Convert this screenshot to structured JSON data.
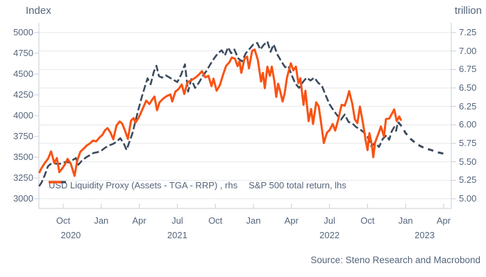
{
  "chart": {
    "left_axis_title": "Index",
    "right_axis_title": "trillion",
    "source": "Source: Steno Research and Macrobond",
    "legend": [
      {
        "label": "USD Liquidity Proxy (Assets - TGA - RRP) , rhs"
      },
      {
        "label": "S&P 500 total return, lhs"
      }
    ]
  },
  "chart_data": {
    "type": "line",
    "title": "",
    "grid": true,
    "legend_position": "bottom-inside",
    "colors": {
      "liquidity": "#3b4a5c",
      "sp500": "#f95213",
      "gridline": "#e4e7ea",
      "axis_line": "#c8cdd4",
      "text": "#54647a"
    },
    "left_axis": {
      "title": "Index",
      "min": 3000,
      "max": 5000,
      "ticks": [
        "5000",
        "4750",
        "4500",
        "4250",
        "4000",
        "3750",
        "3500",
        "3250",
        "3000"
      ]
    },
    "right_axis": {
      "title": "trillion",
      "min": 5.0,
      "max": 7.25,
      "ticks": [
        "7.25",
        "7.00",
        "6.75",
        "6.50",
        "6.25",
        "6.00",
        "5.75",
        "5.50",
        "5.25",
        "5.00"
      ]
    },
    "x_axis": {
      "unit": "months since Aug 2020",
      "month_ticks": [
        "Oct",
        "Jan",
        "Apr",
        "Jul",
        "Oct",
        "Jan",
        "Apr",
        "Jul",
        "Oct",
        "Jan",
        "Apr"
      ],
      "year_labels": [
        "2020",
        "2021",
        "2022",
        "2023"
      ],
      "year_tick_anchor": [
        0.2,
        3,
        7,
        9.5
      ]
    },
    "series": [
      {
        "name": "USD Liquidity Proxy (Assets - TGA - RRP) , rhs",
        "axis": "right",
        "style": "dashed",
        "color": "#3b4a5c",
        "points": [
          [
            0.1,
            5.17
          ],
          [
            0.3,
            5.22
          ],
          [
            0.55,
            5.32
          ],
          [
            0.8,
            5.44
          ],
          [
            1.0,
            5.47
          ],
          [
            1.3,
            5.48
          ],
          [
            1.6,
            5.47
          ],
          [
            1.9,
            5.48
          ],
          [
            2.2,
            5.5
          ],
          [
            2.5,
            5.49
          ],
          [
            2.8,
            5.53
          ],
          [
            3.0,
            5.55
          ],
          [
            3.2,
            5.46
          ],
          [
            3.5,
            5.52
          ],
          [
            3.8,
            5.56
          ],
          [
            4.1,
            5.59
          ],
          [
            4.4,
            5.62
          ],
          [
            4.7,
            5.63
          ],
          [
            5.0,
            5.65
          ],
          [
            5.3,
            5.69
          ],
          [
            5.6,
            5.72
          ],
          [
            5.9,
            5.74
          ],
          [
            6.2,
            5.77
          ],
          [
            6.5,
            5.82
          ],
          [
            6.8,
            5.74
          ],
          [
            7.0,
            5.66
          ],
          [
            7.2,
            5.76
          ],
          [
            7.45,
            5.88
          ],
          [
            7.7,
            6.05
          ],
          [
            7.95,
            6.22
          ],
          [
            8.2,
            6.38
          ],
          [
            8.45,
            6.52
          ],
          [
            8.65,
            6.63
          ],
          [
            8.9,
            6.55
          ],
          [
            9.15,
            6.72
          ],
          [
            9.35,
            6.8
          ],
          [
            9.55,
            6.66
          ],
          [
            9.8,
            6.64
          ],
          [
            10.1,
            6.67
          ],
          [
            10.4,
            6.64
          ],
          [
            10.7,
            6.61
          ],
          [
            11.0,
            6.58
          ],
          [
            11.3,
            6.68
          ],
          [
            11.6,
            6.82
          ],
          [
            11.85,
            6.45
          ],
          [
            12.1,
            6.62
          ],
          [
            12.4,
            6.5
          ],
          [
            12.7,
            6.57
          ],
          [
            13.0,
            6.66
          ],
          [
            13.3,
            6.73
          ],
          [
            13.6,
            6.82
          ],
          [
            13.9,
            6.9
          ],
          [
            14.2,
            6.97
          ],
          [
            14.5,
            7.01
          ],
          [
            14.75,
            6.94
          ],
          [
            15.0,
            7.05
          ],
          [
            15.25,
            6.97
          ],
          [
            15.5,
            7.02
          ],
          [
            15.8,
            6.9
          ],
          [
            16.1,
            6.86
          ],
          [
            16.4,
            6.97
          ],
          [
            16.7,
            7.03
          ],
          [
            17.0,
            7.09
          ],
          [
            17.3,
            7.11
          ],
          [
            17.55,
            7.02
          ],
          [
            17.8,
            7.08
          ],
          [
            18.1,
            7.13
          ],
          [
            18.35,
            6.99
          ],
          [
            18.6,
            7.09
          ],
          [
            18.9,
            6.95
          ],
          [
            19.2,
            6.86
          ],
          [
            19.5,
            6.78
          ],
          [
            19.75,
            6.8
          ],
          [
            20.0,
            6.68
          ],
          [
            20.3,
            6.56
          ],
          [
            20.6,
            6.5
          ],
          [
            20.9,
            6.58
          ],
          [
            21.2,
            6.64
          ],
          [
            21.5,
            6.6
          ],
          [
            21.8,
            6.64
          ],
          [
            22.1,
            6.57
          ],
          [
            22.4,
            6.53
          ],
          [
            22.7,
            6.4
          ],
          [
            23.0,
            6.28
          ],
          [
            23.3,
            6.2
          ],
          [
            23.6,
            6.13
          ],
          [
            23.9,
            6.07
          ],
          [
            24.2,
            6.14
          ],
          [
            24.5,
            6.04
          ],
          [
            24.8,
            6.02
          ],
          [
            25.1,
            5.97
          ],
          [
            25.4,
            5.94
          ],
          [
            25.7,
            5.9
          ],
          [
            26.0,
            5.84
          ],
          [
            26.3,
            5.71
          ],
          [
            26.6,
            5.76
          ],
          [
            26.9,
            5.7
          ],
          [
            27.2,
            5.81
          ],
          [
            27.5,
            5.86
          ],
          [
            27.7,
            5.8
          ],
          [
            27.9,
            5.91
          ],
          [
            28.1,
            5.97
          ],
          [
            28.25,
            5.92
          ],
          [
            28.4,
            6.04
          ]
        ],
        "projection": [
          [
            28.4,
            6.04
          ],
          [
            28.7,
            5.98
          ],
          [
            29.0,
            5.89
          ],
          [
            29.4,
            5.81
          ],
          [
            29.8,
            5.75
          ],
          [
            30.2,
            5.71
          ],
          [
            30.6,
            5.68
          ],
          [
            31.0,
            5.66
          ],
          [
            31.5,
            5.63
          ],
          [
            32.0,
            5.61
          ]
        ]
      },
      {
        "name": "S&P 500 total return, lhs",
        "axis": "left",
        "style": "solid",
        "color": "#f95213",
        "points": [
          [
            0.1,
            3310
          ],
          [
            0.3,
            3370
          ],
          [
            0.55,
            3430
          ],
          [
            0.8,
            3480
          ],
          [
            1.05,
            3570
          ],
          [
            1.3,
            3430
          ],
          [
            1.5,
            3490
          ],
          [
            1.7,
            3320
          ],
          [
            1.95,
            3370
          ],
          [
            2.15,
            3415
          ],
          [
            2.35,
            3480
          ],
          [
            2.6,
            3420
          ],
          [
            2.9,
            3275
          ],
          [
            3.1,
            3455
          ],
          [
            3.35,
            3565
          ],
          [
            3.6,
            3600
          ],
          [
            3.85,
            3640
          ],
          [
            4.1,
            3665
          ],
          [
            4.35,
            3700
          ],
          [
            4.6,
            3690
          ],
          [
            4.85,
            3735
          ],
          [
            5.1,
            3770
          ],
          [
            5.3,
            3825
          ],
          [
            5.5,
            3850
          ],
          [
            5.75,
            3790
          ],
          [
            5.95,
            3715
          ],
          [
            6.2,
            3880
          ],
          [
            6.45,
            3930
          ],
          [
            6.65,
            3905
          ],
          [
            6.85,
            3830
          ],
          [
            7.1,
            3720
          ],
          [
            7.35,
            3940
          ],
          [
            7.55,
            3970
          ],
          [
            7.7,
            3915
          ],
          [
            7.95,
            3975
          ],
          [
            8.2,
            4060
          ],
          [
            8.55,
            4180
          ],
          [
            8.8,
            4140
          ],
          [
            9.05,
            4200
          ],
          [
            9.2,
            4230
          ],
          [
            9.4,
            4065
          ],
          [
            9.6,
            4160
          ],
          [
            9.85,
            4200
          ],
          [
            10.1,
            4230
          ],
          [
            10.45,
            4255
          ],
          [
            10.6,
            4170
          ],
          [
            10.85,
            4290
          ],
          [
            11.1,
            4320
          ],
          [
            11.35,
            4375
          ],
          [
            11.55,
            4260
          ],
          [
            11.8,
            4400
          ],
          [
            12.1,
            4425
          ],
          [
            12.45,
            4460
          ],
          [
            12.7,
            4495
          ],
          [
            12.95,
            4535
          ],
          [
            13.2,
            4460
          ],
          [
            13.45,
            4480
          ],
          [
            13.7,
            4355
          ],
          [
            13.85,
            4445
          ],
          [
            14.1,
            4300
          ],
          [
            14.35,
            4365
          ],
          [
            14.6,
            4490
          ],
          [
            14.85,
            4600
          ],
          [
            15.1,
            4640
          ],
          [
            15.3,
            4700
          ],
          [
            15.55,
            4685
          ],
          [
            15.75,
            4595
          ],
          [
            15.9,
            4655
          ],
          [
            16.05,
            4515
          ],
          [
            16.3,
            4685
          ],
          [
            16.5,
            4710
          ],
          [
            16.65,
            4570
          ],
          [
            16.9,
            4780
          ],
          [
            17.1,
            4795
          ],
          [
            17.35,
            4670
          ],
          [
            17.6,
            4410
          ],
          [
            17.75,
            4515
          ],
          [
            17.9,
            4330
          ],
          [
            18.1,
            4590
          ],
          [
            18.3,
            4480
          ],
          [
            18.45,
            4590
          ],
          [
            18.65,
            4420
          ],
          [
            18.8,
            4225
          ],
          [
            18.95,
            4385
          ],
          [
            19.1,
            4300
          ],
          [
            19.3,
            4170
          ],
          [
            19.45,
            4260
          ],
          [
            19.65,
            4460
          ],
          [
            19.95,
            4630
          ],
          [
            20.15,
            4545
          ],
          [
            20.35,
            4590
          ],
          [
            20.55,
            4390
          ],
          [
            20.7,
            4450
          ],
          [
            20.95,
            4130
          ],
          [
            21.1,
            4300
          ],
          [
            21.35,
            3935
          ],
          [
            21.55,
            4080
          ],
          [
            21.7,
            3900
          ],
          [
            21.95,
            4160
          ],
          [
            22.15,
            4110
          ],
          [
            22.35,
            3900
          ],
          [
            22.55,
            3670
          ],
          [
            22.8,
            3795
          ],
          [
            23.0,
            3825
          ],
          [
            23.25,
            3900
          ],
          [
            23.45,
            3820
          ],
          [
            23.7,
            3960
          ],
          [
            23.95,
            4130
          ],
          [
            24.2,
            4120
          ],
          [
            24.4,
            4210
          ],
          [
            24.55,
            4295
          ],
          [
            24.8,
            4140
          ],
          [
            25.0,
            3955
          ],
          [
            25.2,
            3910
          ],
          [
            25.4,
            4110
          ],
          [
            25.65,
            3900
          ],
          [
            25.85,
            3700
          ],
          [
            26.0,
            3585
          ],
          [
            26.15,
            3790
          ],
          [
            26.35,
            3640
          ],
          [
            26.45,
            3500
          ],
          [
            26.6,
            3680
          ],
          [
            26.9,
            3800
          ],
          [
            27.05,
            3870
          ],
          [
            27.3,
            3750
          ],
          [
            27.45,
            3960
          ],
          [
            27.7,
            3965
          ],
          [
            27.95,
            4030
          ],
          [
            28.1,
            4075
          ],
          [
            28.3,
            3935
          ],
          [
            28.5,
            3990
          ],
          [
            28.65,
            3940
          ]
        ]
      }
    ]
  }
}
